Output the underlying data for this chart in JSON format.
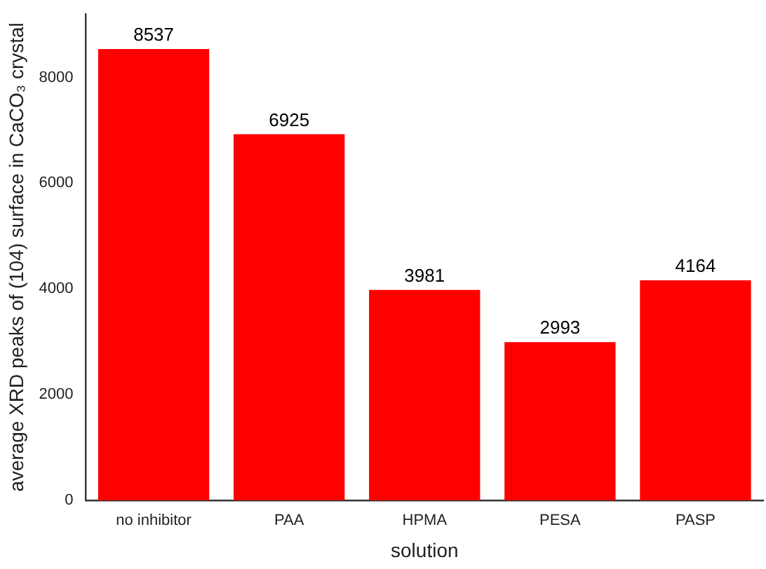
{
  "chart_data": {
    "type": "bar",
    "xlabel": "solution",
    "ylabel": "average XRD peaks of (104) surface in CaCO₃ crystal",
    "categories": [
      "no inhibitor",
      "PAA",
      "HPMA",
      "PESA",
      "PASP"
    ],
    "values": [
      8537,
      6925,
      3981,
      2993,
      4164
    ],
    "color": "#ff0000",
    "ylim": [
      0,
      9200
    ],
    "yticks": [
      0,
      2000,
      4000,
      6000,
      8000
    ],
    "grid": false,
    "legend": false,
    "data_labels": true
  }
}
